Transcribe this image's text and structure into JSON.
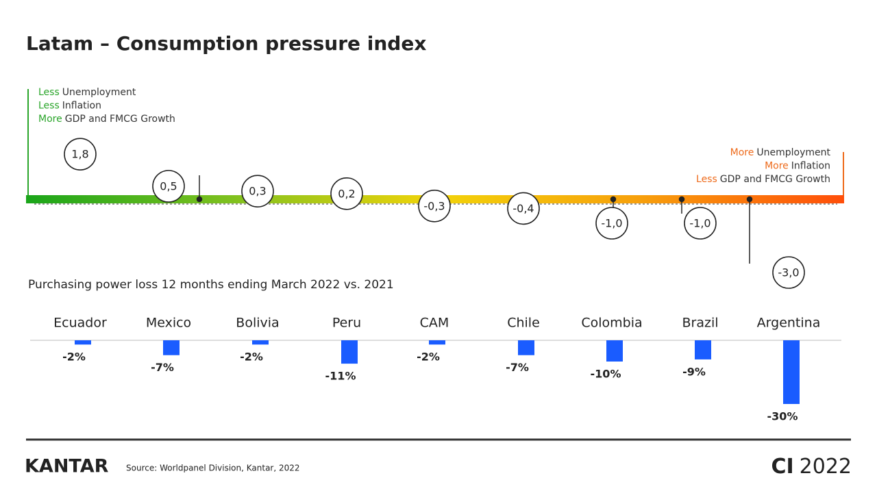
{
  "header": {
    "title": "Latam – Consumption pressure index"
  },
  "legend_left": [
    {
      "qualifier": "Less",
      "text": "Unemployment"
    },
    {
      "qualifier": "Less",
      "text": "Inflation"
    },
    {
      "qualifier": "More",
      "text": "GDP and FMCG Growth"
    }
  ],
  "legend_right": [
    {
      "qualifier": "More",
      "text": "Unemployment"
    },
    {
      "qualifier": "More",
      "text": "Inflation"
    },
    {
      "qualifier": "Less",
      "text": "GDP and FMCG Growth"
    }
  ],
  "chart_data": [
    {
      "type": "dot",
      "values": [
        1.8,
        0.5,
        0.3,
        0.2,
        -0.3,
        -0.4,
        -1.0,
        -1.0,
        -3.0
      ],
      "value_labels": [
        "1,8",
        "0,5",
        "0,3",
        "0,2",
        "-0,3",
        "-0,4",
        "-1,0",
        "-1,0",
        "-3,0"
      ],
      "gradient": [
        "#1aa51a",
        "#7fc11f",
        "#f2d40a",
        "#f7a00c",
        "#ff4e0a"
      ]
    },
    {
      "type": "bar",
      "subtitle": "Purchasing power loss 12 months ending March 2022 vs. 2021",
      "categories": [
        "Ecuador",
        "Mexico",
        "Bolivia",
        "Peru",
        "CAM",
        "Chile",
        "Colombia",
        "Brazil",
        "Argentina"
      ],
      "values": [
        -2,
        -7,
        -2,
        -11,
        -2,
        -7,
        -10,
        -9,
        -30
      ],
      "value_labels": [
        "-2%",
        "-7%",
        "-2%",
        "-11%",
        "-2%",
        "-7%",
        "-10%",
        "-9%",
        "-30%"
      ],
      "color": "#1a5cff"
    }
  ],
  "footer": {
    "logo": "KANTAR",
    "source": "Source: Worldpanel Division, Kantar, 2022",
    "brand": "CI",
    "year": "2022"
  }
}
